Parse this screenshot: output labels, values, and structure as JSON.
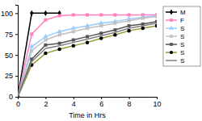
{
  "chart_data": {
    "type": "line",
    "x_label": "Time in Hrs",
    "x": [
      0,
      1,
      2,
      3,
      4,
      5,
      6,
      7,
      8,
      9,
      10
    ],
    "xlim": [
      0,
      10
    ],
    "xticks": [
      0,
      2,
      4,
      6,
      8,
      10
    ],
    "ylim": [
      0,
      110
    ],
    "yticks": [
      0,
      25,
      50,
      75,
      100
    ],
    "grid": false,
    "legend": "right",
    "series": [
      {
        "name": "M",
        "color": "#000000",
        "marker": "diamond",
        "line_style": "solid",
        "values": [
          0,
          100,
          100,
          100,
          null,
          null,
          null,
          null,
          null,
          null,
          null
        ]
      },
      {
        "name": "F",
        "color": "#ff7fbf",
        "marker": "square",
        "line_style": "solid",
        "values": [
          0,
          75,
          92,
          97,
          98,
          98,
          98,
          98,
          98,
          98,
          98
        ]
      },
      {
        "name": "S",
        "color": "#99ccff",
        "marker": "triangle",
        "line_style": "solid",
        "values": [
          0,
          60,
          72,
          78,
          82,
          85,
          88,
          90,
          93,
          95,
          97
        ]
      },
      {
        "name": "S",
        "color": "#c0c0c0",
        "marker": "x",
        "line_style": "solid",
        "values": [
          0,
          55,
          68,
          74,
          78,
          82,
          85,
          88,
          91,
          94,
          96
        ]
      },
      {
        "name": "S",
        "color": "#555555",
        "marker": "square",
        "line_style": "solid",
        "values": [
          0,
          45,
          62,
          64,
          68,
          72,
          76,
          80,
          85,
          87,
          90
        ]
      },
      {
        "name": "S",
        "color": "#999933",
        "marker": "circle",
        "line_style": "solid",
        "values": [
          0,
          38,
          52,
          57,
          61,
          65,
          70,
          74,
          79,
          82,
          85
        ]
      },
      {
        "name": "S",
        "color": "#808080",
        "marker": "none",
        "line_style": "solid",
        "values": [
          0,
          42,
          58,
          61,
          65,
          69,
          73,
          77,
          82,
          85,
          88
        ]
      }
    ]
  }
}
